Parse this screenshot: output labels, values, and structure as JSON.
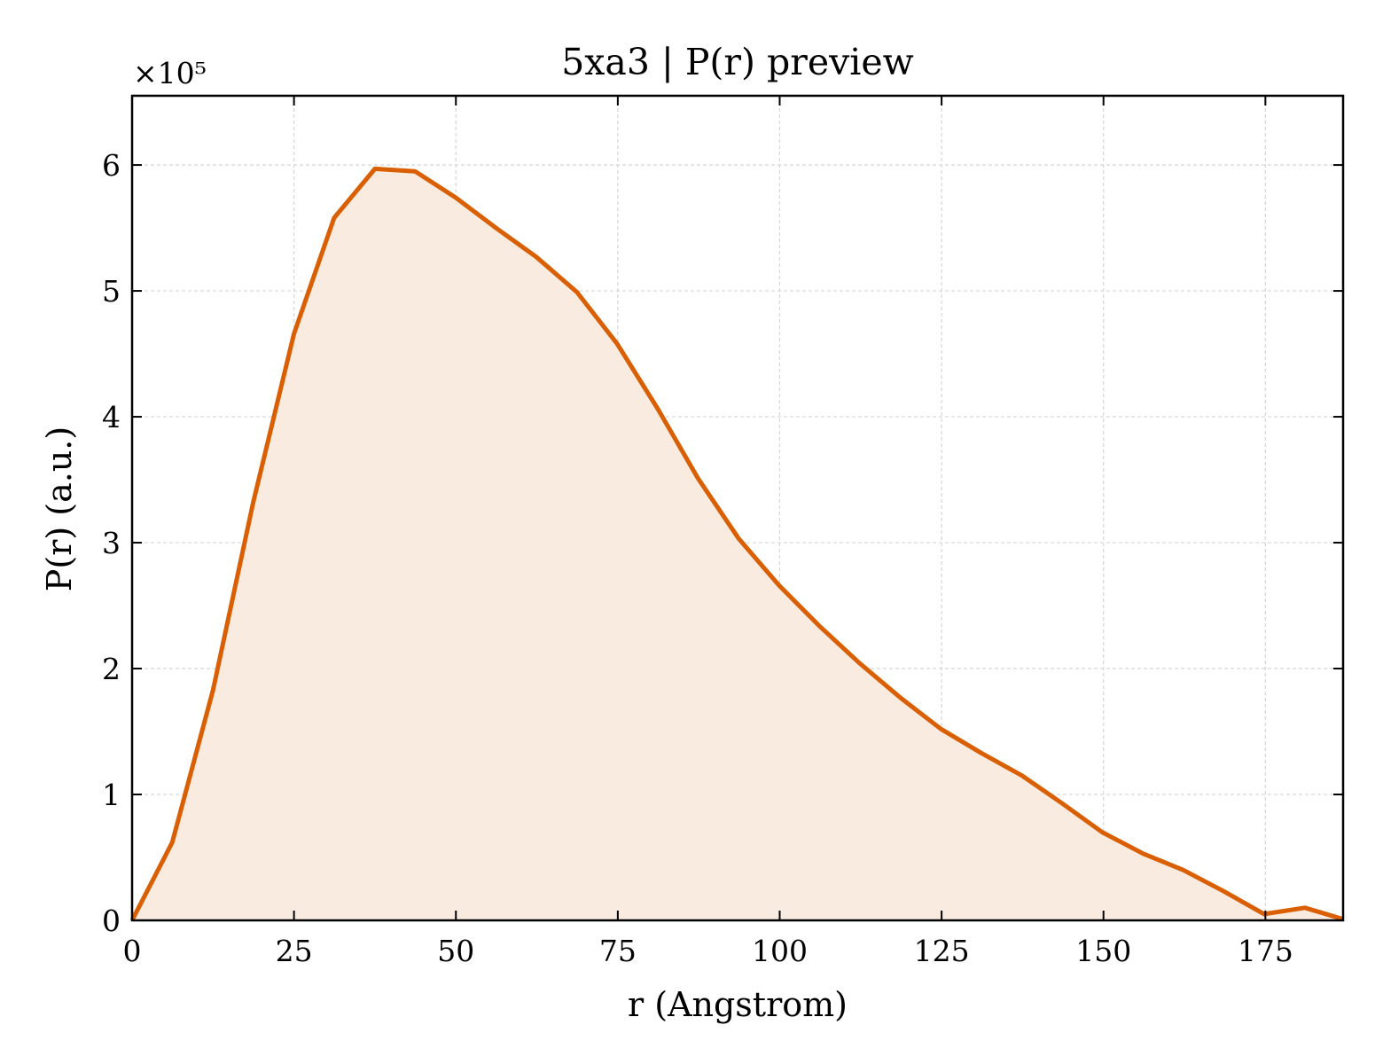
{
  "chart_data": {
    "type": "area",
    "title": "5xa3 | P(r) preview",
    "xlabel": "r (Angstrom)",
    "ylabel": "P(r) (a.u.)",
    "y_offset_text": "×10⁵",
    "xlim": [
      0,
      187
    ],
    "ylim": [
      0,
      6.55
    ],
    "y_scale_multiplier": 100000,
    "grid": true,
    "legend": "none",
    "x_ticks": [
      0,
      25,
      50,
      75,
      100,
      125,
      150,
      175
    ],
    "y_ticks": [
      0,
      1,
      2,
      3,
      4,
      5,
      6
    ],
    "line_color": "#d95f02",
    "fill_color": "#f9ebe0",
    "series": [
      {
        "x": [
          0,
          6.2,
          12.5,
          18.7,
          25,
          31.2,
          37.5,
          43.7,
          50,
          56.2,
          62.4,
          68.7,
          74.9,
          81.2,
          87.4,
          93.7,
          99.9,
          106.1,
          112.4,
          118.6,
          124.9,
          131.1,
          137.4,
          143.6,
          149.8,
          156.1,
          162.3,
          168.6,
          174.8,
          181.1,
          187
        ],
        "y": [
          0,
          0.62,
          1.83,
          3.32,
          4.66,
          5.58,
          5.97,
          5.95,
          5.74,
          5.5,
          5.27,
          4.99,
          4.58,
          4.06,
          3.51,
          3.03,
          2.66,
          2.34,
          2.04,
          1.77,
          1.52,
          1.33,
          1.15,
          0.93,
          0.7,
          0.53,
          0.4,
          0.23,
          0.05,
          0.1,
          0.01
        ]
      }
    ]
  }
}
